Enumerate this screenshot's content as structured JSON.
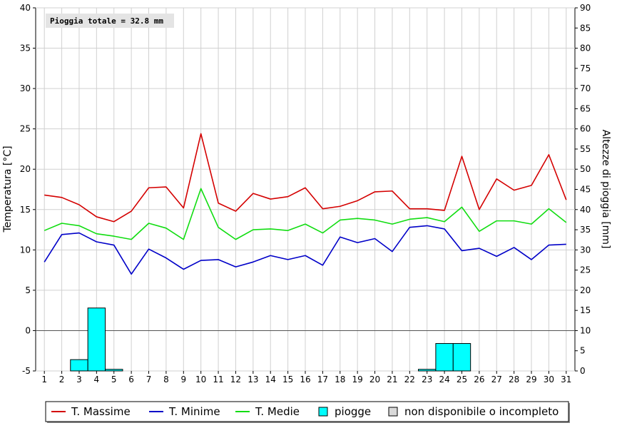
{
  "chart_data": {
    "type": "line",
    "title": "",
    "annotation": "Pioggia totale = 32.8 mm",
    "ylabel_left": "Temperatura [°C]",
    "ylabel_right": "Altezze di pioggia [mm]",
    "ylim_left": [
      -5,
      40
    ],
    "ylim_right": [
      0,
      90
    ],
    "y_ticks_left": [
      "40",
      "35",
      "30",
      "25",
      "20",
      "15",
      "10",
      "5",
      "0",
      "-5"
    ],
    "y_ticks_right": [
      "90",
      "85",
      "80",
      "75",
      "70",
      "65",
      "60",
      "55",
      "50",
      "45",
      "40",
      "35",
      "30",
      "25",
      "20",
      "15",
      "10",
      "5",
      "0"
    ],
    "x": [
      1,
      2,
      3,
      4,
      5,
      6,
      7,
      8,
      9,
      10,
      11,
      12,
      13,
      14,
      15,
      16,
      17,
      18,
      19,
      20,
      21,
      22,
      23,
      24,
      25,
      26,
      27,
      28,
      29,
      30,
      31
    ],
    "grid": true,
    "legend_position": "bottom",
    "series": [
      {
        "name": "T. Massime",
        "color": "#d40000",
        "axis": "left",
        "values": [
          16.8,
          16.5,
          15.6,
          14.1,
          13.5,
          14.8,
          17.7,
          17.8,
          15.2,
          24.4,
          15.8,
          14.8,
          17.0,
          16.3,
          16.6,
          17.7,
          15.1,
          15.4,
          16.1,
          17.2,
          17.3,
          15.1,
          15.1,
          14.9,
          21.6,
          15.0,
          18.8,
          17.4,
          18.0,
          21.8,
          16.2
        ]
      },
      {
        "name": "T. Minime",
        "color": "#0000c8",
        "axis": "left",
        "values": [
          8.5,
          11.9,
          12.1,
          11.0,
          10.6,
          7.0,
          10.1,
          9.0,
          7.6,
          8.7,
          8.8,
          7.9,
          8.5,
          9.3,
          8.8,
          9.3,
          8.1,
          11.6,
          10.9,
          11.4,
          9.8,
          12.8,
          13.0,
          12.6,
          9.9,
          10.2,
          9.2,
          10.3,
          8.8,
          10.6,
          10.7
        ]
      },
      {
        "name": "T. Medie",
        "color": "#11dd11",
        "axis": "left",
        "values": [
          12.4,
          13.3,
          13.0,
          12.0,
          11.7,
          11.3,
          13.3,
          12.7,
          11.3,
          17.6,
          12.8,
          11.3,
          12.5,
          12.6,
          12.4,
          13.2,
          12.1,
          13.7,
          13.9,
          13.7,
          13.2,
          13.8,
          14.0,
          13.5,
          15.3,
          12.3,
          13.6,
          13.6,
          13.2,
          15.1,
          13.4
        ]
      },
      {
        "name": "piogge",
        "color": "#00ffff",
        "axis": "right",
        "type": "bar",
        "values": [
          0,
          0,
          2.8,
          15.6,
          0.4,
          0,
          0,
          0,
          0,
          0,
          0,
          0,
          0,
          0,
          0,
          0,
          0,
          0,
          0,
          0,
          0,
          0,
          0.4,
          6.8,
          6.8,
          0,
          0,
          0,
          0,
          0,
          0
        ]
      }
    ],
    "legend": [
      {
        "label": "T. Massime",
        "kind": "line",
        "color": "#d40000"
      },
      {
        "label": "T. Minime",
        "kind": "line",
        "color": "#0000c8"
      },
      {
        "label": "T. Medie",
        "kind": "line",
        "color": "#11dd11"
      },
      {
        "label": "piogge",
        "kind": "box",
        "color": "#00ffff"
      },
      {
        "label": "non disponibile o incompleto",
        "kind": "box",
        "color": "#d9d9d9"
      }
    ]
  }
}
